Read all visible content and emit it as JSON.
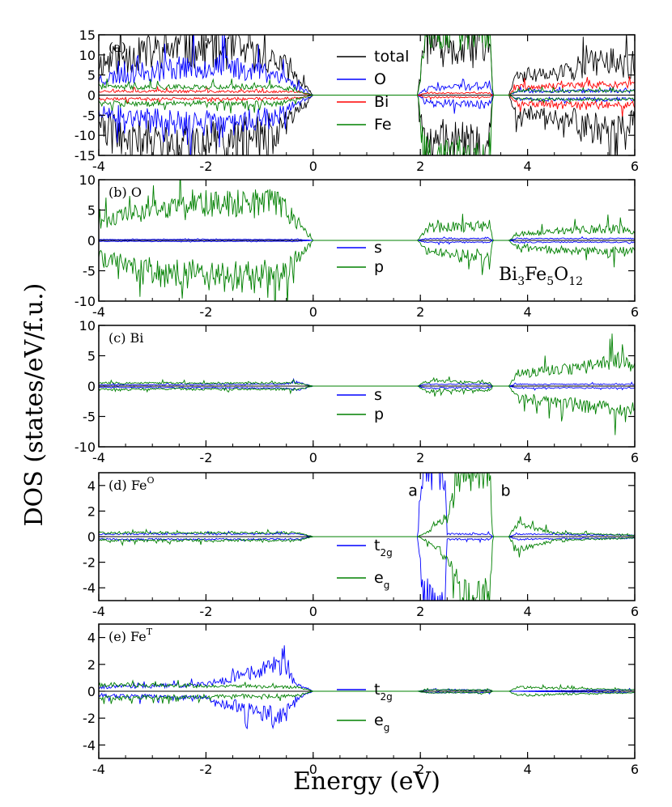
{
  "chart_data": {
    "type": "line",
    "title": "",
    "xlabel": "Energy (eV)",
    "ylabel": "DOS (states/eV/f.u.)",
    "xlim": [
      -4,
      6
    ],
    "x_ticks": [
      -4,
      -2,
      0,
      2,
      4,
      6
    ],
    "x_tick_labels": [
      "-4",
      "-2",
      "0",
      "2",
      "4",
      "6"
    ],
    "formula": {
      "base": "Bi",
      "sub1": "3",
      "mid": "Fe",
      "sub2": "5",
      "tail": "O",
      "sub3": "12"
    },
    "colors": {
      "total": "#000000",
      "O": "#0000ff",
      "Bi": "#ff0000",
      "Fe": "#008000",
      "blue": "#0000ff",
      "green": "#008000"
    },
    "panels": [
      {
        "label": "(a)",
        "ylim": [
          -15,
          15
        ],
        "y_ticks": [
          -15,
          -10,
          -5,
          0,
          5,
          10,
          15
        ],
        "y_tick_labels": [
          "-15",
          "-10",
          "-5",
          "0",
          "5",
          "10",
          "15"
        ],
        "legend": [
          {
            "key": "total",
            "label": "total"
          },
          {
            "key": "O",
            "label": "O"
          },
          {
            "key": "Bi",
            "label": "Bi"
          },
          {
            "key": "Fe",
            "label": "Fe"
          }
        ],
        "series": [
          {
            "name": "total",
            "color": "#000000",
            "profile": [
              [
                -4,
                8
              ],
              [
                -2.5,
                12
              ],
              [
                -1.5,
                11
              ],
              [
                -0.6,
                8
              ],
              [
                -0.3,
                4
              ],
              [
                0,
                0
              ],
              [
                1.95,
                0
              ],
              [
                2.1,
                14
              ],
              [
                2.5,
                10
              ],
              [
                3.3,
                13
              ],
              [
                3.35,
                0
              ],
              [
                3.65,
                0
              ],
              [
                3.8,
                5
              ],
              [
                4.5,
                5
              ],
              [
                5.5,
                9
              ],
              [
                6,
                6
              ]
            ],
            "noise": 0.45,
            "seed": 11
          },
          {
            "name": "O",
            "color": "#0000ff",
            "profile": [
              [
                -4,
                4
              ],
              [
                -2.5,
                7
              ],
              [
                -1.5,
                7
              ],
              [
                -0.6,
                5
              ],
              [
                -0.3,
                2
              ],
              [
                0,
                0
              ],
              [
                1.95,
                0
              ],
              [
                2.1,
                1.5
              ],
              [
                3.3,
                2.5
              ],
              [
                3.35,
                0
              ],
              [
                3.65,
                0
              ],
              [
                3.8,
                1
              ],
              [
                6,
                1
              ]
            ],
            "noise": 0.45,
            "seed": 23
          },
          {
            "name": "Bi",
            "color": "#ff0000",
            "profile": [
              [
                -4,
                1
              ],
              [
                -0.3,
                0.8
              ],
              [
                0,
                0
              ],
              [
                1.95,
                0
              ],
              [
                2.1,
                0.5
              ],
              [
                3.3,
                0.5
              ],
              [
                3.35,
                0
              ],
              [
                3.65,
                0
              ],
              [
                3.8,
                2
              ],
              [
                5,
                2.5
              ],
              [
                6,
                2.5
              ]
            ],
            "noise": 0.35,
            "seed": 37
          },
          {
            "name": "Fe",
            "color": "#008000",
            "profile": [
              [
                -4,
                2
              ],
              [
                -0.6,
                2
              ],
              [
                -0.3,
                1
              ],
              [
                0,
                0
              ],
              [
                1.95,
                0
              ],
              [
                2.1,
                15
              ],
              [
                3.3,
                15
              ],
              [
                3.35,
                0
              ],
              [
                3.65,
                0
              ],
              [
                3.8,
                1
              ],
              [
                6,
                1
              ]
            ],
            "noise": 0.3,
            "seed": 41
          }
        ]
      },
      {
        "label": "(b) O",
        "ylim": [
          -10,
          10
        ],
        "y_ticks": [
          -10,
          -5,
          0,
          5,
          10
        ],
        "y_tick_labels": [
          "-10",
          "-5",
          "0",
          "5",
          "10"
        ],
        "legend": [
          {
            "key": "blue",
            "label": "s"
          },
          {
            "key": "green",
            "label": "p"
          }
        ],
        "series": [
          {
            "name": "s",
            "color": "#0000ff",
            "profile": [
              [
                -4,
                0.15
              ],
              [
                -0.3,
                0.15
              ],
              [
                0,
                0
              ],
              [
                1.95,
                0
              ],
              [
                2.1,
                0.3
              ],
              [
                3.3,
                0.3
              ],
              [
                3.35,
                0
              ],
              [
                3.65,
                0
              ],
              [
                3.8,
                0.3
              ],
              [
                6,
                0.3
              ]
            ],
            "noise": 0.3,
            "seed": 53
          },
          {
            "name": "p",
            "color": "#008000",
            "profile": [
              [
                -4,
                3
              ],
              [
                -3,
                5
              ],
              [
                -1.5,
                6
              ],
              [
                -0.6,
                6
              ],
              [
                -0.3,
                3
              ],
              [
                0,
                0
              ],
              [
                1.95,
                0
              ],
              [
                2.1,
                2
              ],
              [
                3.3,
                2.5
              ],
              [
                3.35,
                0
              ],
              [
                3.65,
                0
              ],
              [
                3.8,
                1
              ],
              [
                5.5,
                2
              ],
              [
                6,
                1.5
              ]
            ],
            "noise": 0.4,
            "seed": 61
          }
        ]
      },
      {
        "label": "(c) Bi",
        "ylim": [
          -10,
          10
        ],
        "y_ticks": [
          -10,
          -5,
          0,
          5,
          10
        ],
        "y_tick_labels": [
          "-10",
          "-5",
          "0",
          "5",
          "10"
        ],
        "legend": [
          {
            "key": "blue",
            "label": "s"
          },
          {
            "key": "green",
            "label": "p"
          }
        ],
        "series": [
          {
            "name": "s",
            "color": "#0000ff",
            "profile": [
              [
                -4,
                0.2
              ],
              [
                -0.6,
                0.3
              ],
              [
                -0.3,
                0.6
              ],
              [
                0,
                0
              ],
              [
                1.95,
                0
              ],
              [
                2.1,
                0.3
              ],
              [
                3.3,
                0.3
              ],
              [
                3.35,
                0
              ],
              [
                3.65,
                0
              ],
              [
                3.8,
                0.3
              ],
              [
                6,
                0.3
              ]
            ],
            "noise": 0.35,
            "seed": 71
          },
          {
            "name": "p",
            "color": "#008000",
            "profile": [
              [
                -4,
                0.5
              ],
              [
                -0.3,
                0.5
              ],
              [
                0,
                0
              ],
              [
                1.95,
                0
              ],
              [
                2.1,
                0.8
              ],
              [
                3.3,
                0.6
              ],
              [
                3.35,
                0
              ],
              [
                3.65,
                0
              ],
              [
                3.8,
                2
              ],
              [
                5,
                3
              ],
              [
                5.8,
                4.5
              ],
              [
                6,
                3
              ]
            ],
            "noise": 0.35,
            "seed": 83
          }
        ]
      },
      {
        "label_main": "(d) Fe",
        "label_sup": "O",
        "ylim": [
          -5,
          5
        ],
        "y_ticks": [
          -4,
          -2,
          0,
          2,
          4
        ],
        "y_tick_labels": [
          "-4",
          "-2",
          "0",
          "2",
          "4"
        ],
        "legend": [
          {
            "key": "blue",
            "label": "t",
            "sub": "2g"
          },
          {
            "key": "green",
            "label": "e",
            "sub": "g"
          }
        ],
        "annotations": [
          {
            "text": "a",
            "x": 1.95,
            "y": 3.2
          },
          {
            "text": "b",
            "x": 3.5,
            "y": 3.2
          }
        ],
        "series": [
          {
            "name": "t2g",
            "color": "#0000ff",
            "profile": [
              [
                -4,
                0.2
              ],
              [
                -0.3,
                0.2
              ],
              [
                0,
                0
              ],
              [
                1.95,
                0
              ],
              [
                2.05,
                5
              ],
              [
                2.45,
                5
              ],
              [
                2.5,
                0.2
              ],
              [
                3.3,
                0.2
              ],
              [
                3.35,
                0
              ],
              [
                3.65,
                0
              ],
              [
                3.8,
                0.2
              ],
              [
                6,
                0.1
              ]
            ],
            "noise": 0.3,
            "seed": 97
          },
          {
            "name": "eg",
            "color": "#008000",
            "profile": [
              [
                -4,
                0.3
              ],
              [
                -0.3,
                0.3
              ],
              [
                0,
                0
              ],
              [
                1.95,
                0
              ],
              [
                2.1,
                0.3
              ],
              [
                2.5,
                1.5
              ],
              [
                2.8,
                5
              ],
              [
                3.3,
                5
              ],
              [
                3.35,
                0
              ],
              [
                3.65,
                0
              ],
              [
                3.8,
                1
              ],
              [
                4.5,
                0.3
              ],
              [
                6,
                0.1
              ]
            ],
            "noise": 0.3,
            "seed": 101
          }
        ]
      },
      {
        "label_main": "(e) Fe",
        "label_sup": "T",
        "ylim": [
          -5,
          5
        ],
        "y_ticks": [
          -4,
          -2,
          0,
          2,
          4
        ],
        "y_tick_labels": [
          "-4",
          "-2",
          "0",
          "2",
          "4"
        ],
        "legend": [
          {
            "key": "blue",
            "label": "t",
            "sub": "2g"
          },
          {
            "key": "green",
            "label": "e",
            "sub": "g"
          }
        ],
        "series": [
          {
            "name": "t2g",
            "color": "#0000ff",
            "profile": [
              [
                -4,
                0.3
              ],
              [
                -2,
                0.5
              ],
              [
                -1,
                1.5
              ],
              [
                -0.6,
                2
              ],
              [
                -0.3,
                0.5
              ],
              [
                0,
                0
              ],
              [
                1.95,
                0
              ],
              [
                2.1,
                0.1
              ],
              [
                3.3,
                0.1
              ],
              [
                3.35,
                0
              ],
              [
                3.65,
                0
              ],
              [
                6,
                0.1
              ]
            ],
            "noise": 0.4,
            "seed": 113
          },
          {
            "name": "eg",
            "color": "#008000",
            "profile": [
              [
                -4,
                0.5
              ],
              [
                -0.3,
                0.3
              ],
              [
                0,
                0
              ],
              [
                1.95,
                0
              ],
              [
                2.1,
                0.1
              ],
              [
                3.3,
                0.1
              ],
              [
                3.35,
                0
              ],
              [
                3.65,
                0
              ],
              [
                3.8,
                0.3
              ],
              [
                6,
                0.1
              ]
            ],
            "noise": 0.35,
            "seed": 127
          }
        ]
      }
    ]
  }
}
